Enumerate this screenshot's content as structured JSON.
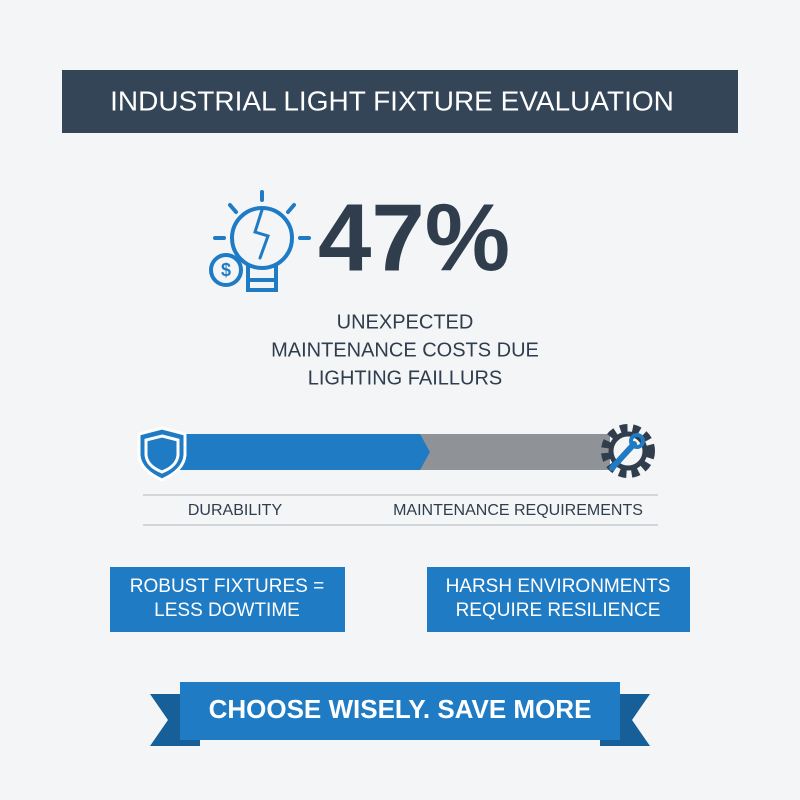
{
  "header": {
    "title": "INDUSTRIAL LIGHT FIXTURE EVALUATION"
  },
  "stat": {
    "value": "47%",
    "lines": [
      "UNEXPECTED",
      "MAINTENANCE COSTS DUE",
      "LIGHTING FAILLURS"
    ]
  },
  "comparison": {
    "left_label": "DURABILITY",
    "right_label": "MAINTENANCE REQUIREMENTS"
  },
  "boxes": [
    {
      "lines": [
        "ROBUST FIXTURES =",
        "LESS DOWTIME"
      ]
    },
    {
      "lines": [
        "HARSH ENVIRONMENTS",
        "REQUIRE RESILIENCE"
      ]
    }
  ],
  "banner": {
    "text": "CHOOSE WISELY. SAVE MORE"
  }
}
